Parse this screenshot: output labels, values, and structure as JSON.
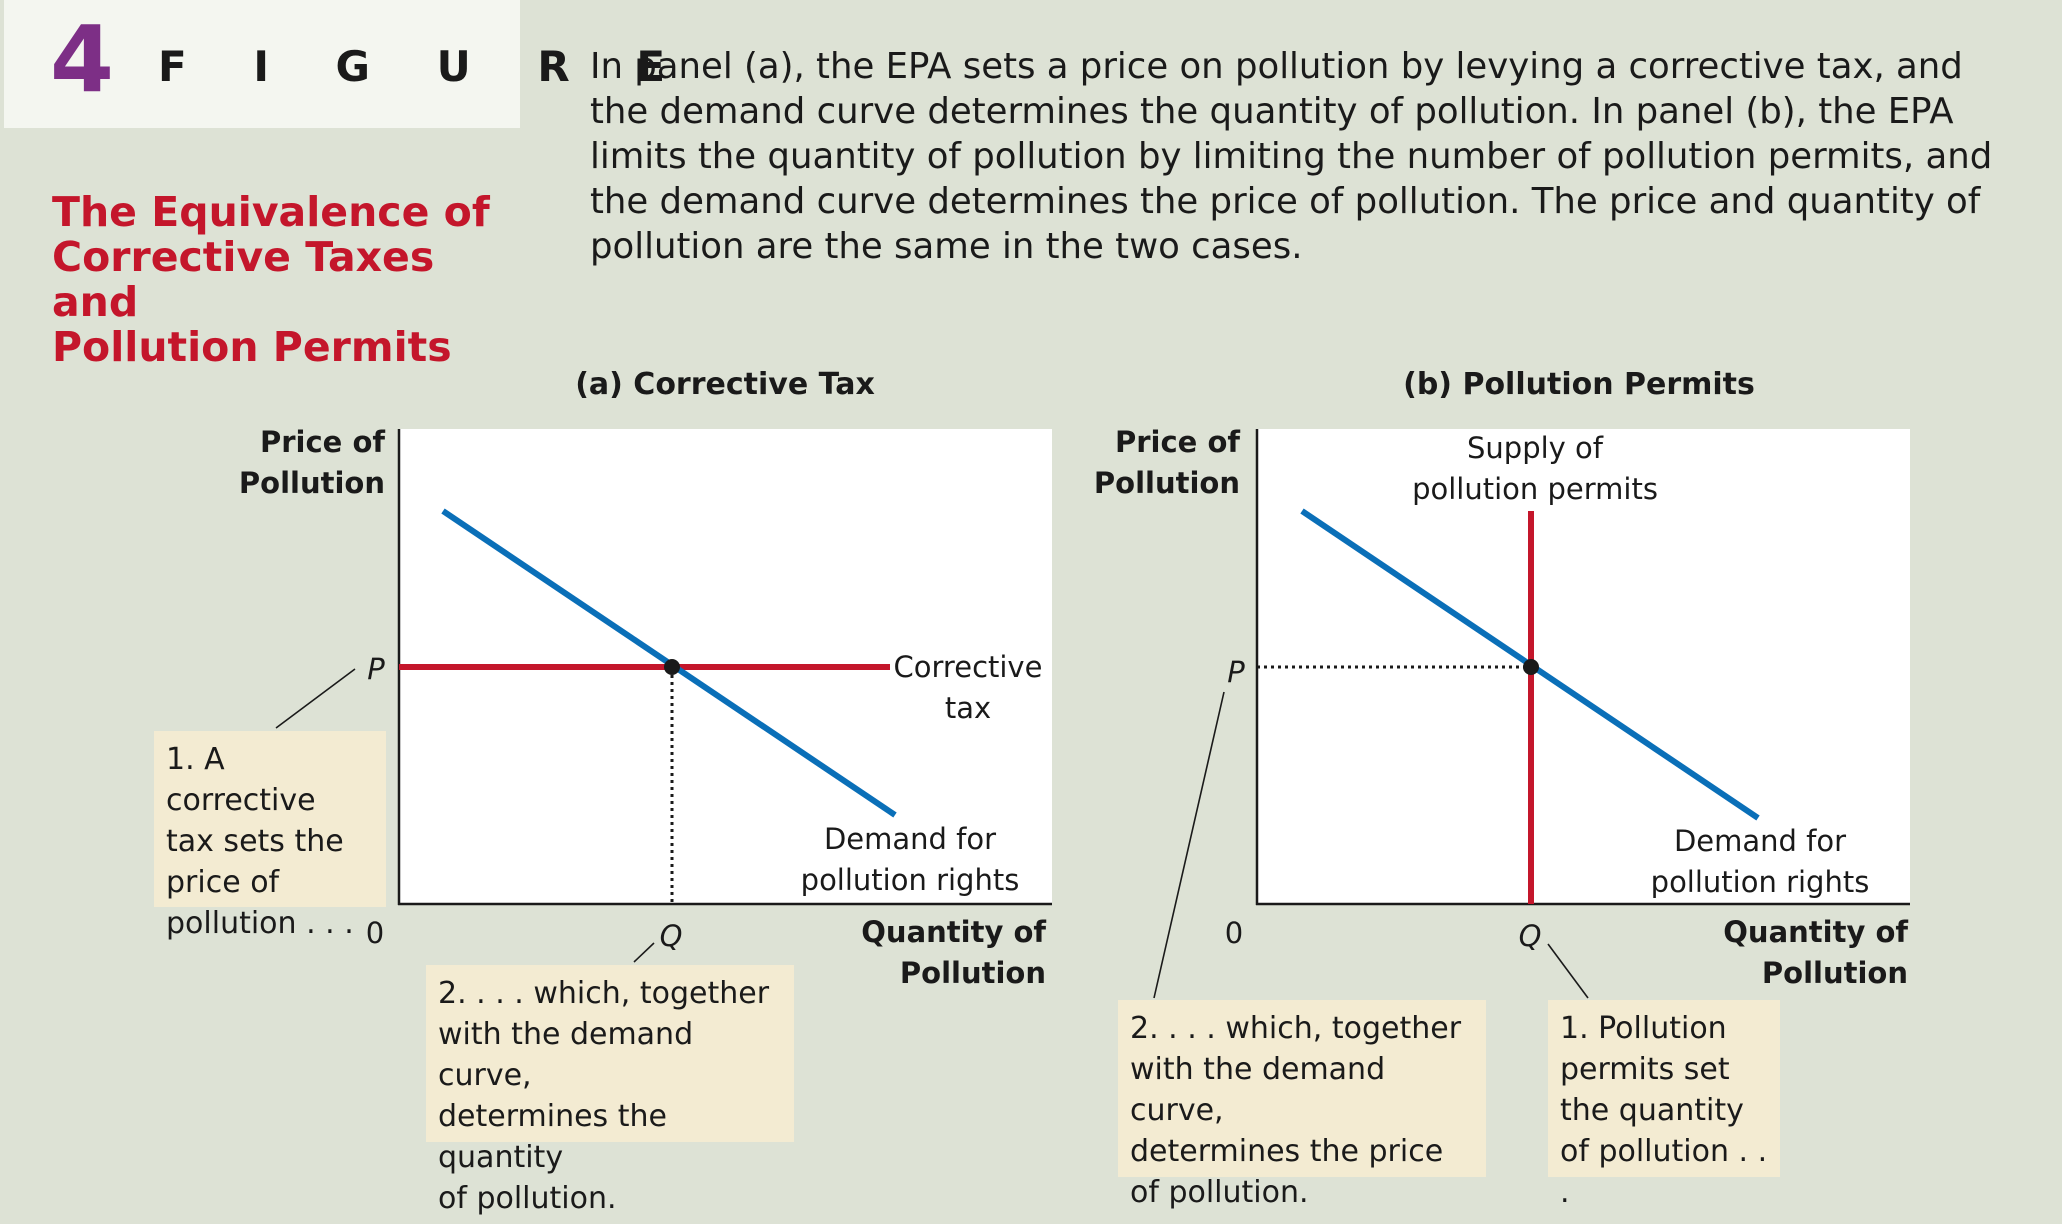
{
  "figure": {
    "number": "4",
    "word": "F I G U R E",
    "title_lines": [
      "The Equivalence of",
      "Corrective Taxes and",
      "Pollution Permits"
    ],
    "caption": "In panel (a), the EPA sets a price on pollution by levying a corrective tax, and the demand curve determines the quantity of pollution. In panel (b), the EPA limits the quantity of pollution by limiting the number of pollution permits, and the demand curve determines the price of pollution. The price and quantity of pollution are the same in the two cases."
  },
  "colors": {
    "demand": "#0a6fb8",
    "policy": "#c4162b",
    "title": "#c4162b",
    "figure_number": "#7d2f86",
    "note_bg": "#f3ebd2"
  },
  "panel_a": {
    "title": "(a) Corrective Tax",
    "y_label": [
      "Price of",
      "Pollution"
    ],
    "x_label": [
      "Quantity of",
      "Pollution"
    ],
    "origin": "0",
    "p_label": "P",
    "q_label": "Q",
    "policy_label": [
      "Corrective",
      "tax"
    ],
    "demand_label": [
      "Demand for",
      "pollution rights"
    ],
    "note_1": [
      "1. A corrective",
      "tax sets the",
      "price of",
      "pollution . . ."
    ],
    "note_2": [
      "2. . . . which, together",
      "with the demand curve,",
      "determines the quantity",
      "of pollution."
    ]
  },
  "panel_b": {
    "title": "(b) Pollution Permits",
    "y_label": [
      "Price of",
      "Pollution"
    ],
    "x_label": [
      "Quantity of",
      "Pollution"
    ],
    "origin": "0",
    "p_label": "P",
    "q_label": "Q",
    "policy_label": [
      "Supply of",
      "pollution permits"
    ],
    "demand_label": [
      "Demand for",
      "pollution rights"
    ],
    "note_1": [
      "1. Pollution",
      "permits set",
      "the quantity",
      "of pollution . . ."
    ],
    "note_2": [
      "2. . . . which, together",
      "with the demand curve,",
      "determines the price",
      "of pollution."
    ]
  }
}
